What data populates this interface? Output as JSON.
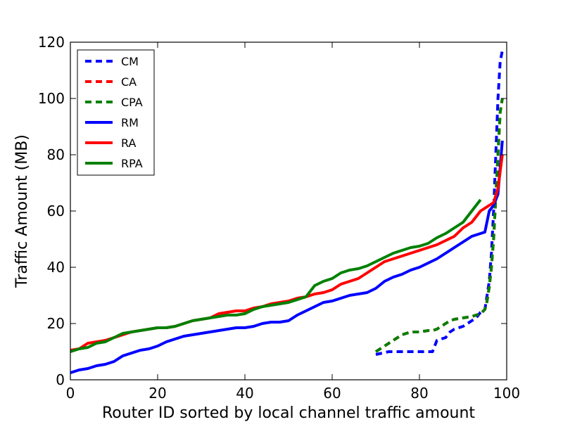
{
  "chart_data": {
    "type": "line",
    "title": "",
    "xlabel": "Router ID sorted by local channel traffic amount",
    "ylabel": "Traffic Amount (MB)",
    "xlim": [
      0,
      100
    ],
    "ylim": [
      0,
      120
    ],
    "xticks": [
      0,
      20,
      40,
      60,
      80,
      100
    ],
    "yticks": [
      0,
      20,
      40,
      60,
      80,
      100,
      120
    ],
    "xtick_labels": [
      "0",
      "20",
      "40",
      "60",
      "80",
      "100"
    ],
    "ytick_labels": [
      "0",
      "20",
      "40",
      "60",
      "80",
      "100",
      "120"
    ],
    "grid": false,
    "legend": "top-left",
    "series": [
      {
        "name": "CM",
        "color": "#0000ff",
        "style": "dashed",
        "x": [
          70,
          71.5,
          73,
          75,
          77,
          80,
          82,
          83,
          84,
          86,
          87,
          88,
          90,
          91,
          92,
          93,
          94,
          95,
          96,
          96.5,
          97,
          97.5,
          98,
          98.5,
          99
        ],
        "y": [
          9,
          9.5,
          10,
          10,
          10,
          10,
          10,
          10,
          14,
          15,
          17,
          18,
          19,
          20,
          21,
          22,
          24,
          25,
          35,
          45,
          60,
          80,
          100,
          113,
          117
        ]
      },
      {
        "name": "CA",
        "color": "#ff0000",
        "style": "dashed",
        "x": [
          70,
          72,
          74,
          76,
          78,
          80,
          82,
          83,
          84,
          86,
          87,
          88,
          90,
          92,
          93,
          94,
          95,
          95.5,
          96,
          96.5,
          97,
          97.5,
          98,
          98.5,
          99
        ],
        "y": [
          10,
          12,
          14,
          16,
          17,
          17,
          17.5,
          17.5,
          18,
          20,
          21,
          21.5,
          22,
          22.5,
          23,
          23.5,
          25,
          28,
          33,
          40,
          50,
          65,
          80,
          95,
          100
        ]
      },
      {
        "name": "CPA",
        "color": "#008000",
        "style": "dashed",
        "x": [
          70,
          72,
          74,
          76,
          78,
          80,
          82,
          83,
          84,
          86,
          87,
          88,
          90,
          92,
          93,
          94,
          95,
          95.5,
          96,
          96.5,
          97,
          97.5,
          98,
          98.5,
          99
        ],
        "y": [
          10,
          12,
          14,
          16,
          17,
          17,
          17.5,
          17.5,
          18,
          20,
          21,
          21.5,
          22,
          22.5,
          23,
          23.5,
          25,
          28,
          33,
          40,
          50,
          65,
          80,
          95,
          100
        ]
      },
      {
        "name": "RM",
        "color": "#0000ff",
        "style": "solid",
        "x": [
          0,
          2,
          4,
          6,
          8,
          10,
          12,
          14,
          16,
          18,
          20,
          22,
          24,
          26,
          28,
          30,
          32,
          34,
          36,
          38,
          40,
          42,
          44,
          46,
          48,
          50,
          52,
          54,
          56,
          58,
          60,
          62,
          64,
          66,
          68,
          70,
          72,
          74,
          76,
          78,
          80,
          82,
          84,
          86,
          88,
          90,
          92,
          94,
          95,
          96,
          97,
          98,
          99
        ],
        "y": [
          2.5,
          3.5,
          4,
          5,
          5.5,
          6.5,
          8.5,
          9.5,
          10.5,
          11,
          12,
          13.5,
          14.5,
          15.5,
          16,
          16.5,
          17,
          17.5,
          18,
          18.5,
          18.5,
          19,
          20,
          20.5,
          20.5,
          21,
          23,
          24.5,
          26,
          27.5,
          28,
          29,
          30,
          30.5,
          31,
          32.5,
          35,
          36.5,
          37.5,
          39,
          40,
          41.5,
          43,
          45,
          47,
          49,
          51,
          52,
          52.5,
          60,
          62,
          66,
          85
        ]
      },
      {
        "name": "RA",
        "color": "#ff0000",
        "style": "solid",
        "x": [
          0,
          2,
          4,
          6,
          8,
          10,
          12,
          14,
          16,
          18,
          20,
          22,
          24,
          26,
          28,
          30,
          32,
          34,
          36,
          38,
          40,
          42,
          44,
          46,
          48,
          50,
          52,
          54,
          56,
          58,
          60,
          62,
          64,
          66,
          68,
          70,
          72,
          74,
          76,
          78,
          80,
          82,
          84,
          86,
          88,
          90,
          92,
          94,
          95,
          96,
          97,
          98,
          99
        ],
        "y": [
          10.5,
          11,
          13,
          13.5,
          14,
          15,
          16,
          17,
          17.5,
          18,
          18.5,
          18.5,
          19,
          20,
          21,
          21.5,
          22,
          23.5,
          24,
          24.5,
          24.5,
          25.5,
          26,
          27,
          27.5,
          28,
          29,
          29.5,
          30.5,
          31,
          32,
          34,
          35,
          36,
          38,
          40,
          42,
          43,
          44,
          45,
          46,
          47,
          48,
          49.5,
          51,
          54,
          56,
          60,
          61,
          62,
          63,
          68,
          80
        ]
      },
      {
        "name": "RPA",
        "color": "#008000",
        "style": "solid",
        "x": [
          0,
          2,
          4,
          6,
          8,
          10,
          12,
          14,
          16,
          18,
          20,
          22,
          24,
          26,
          28,
          30,
          32,
          34,
          36,
          38,
          40,
          42,
          44,
          46,
          48,
          50,
          52,
          54,
          56,
          58,
          60,
          62,
          64,
          66,
          68,
          70,
          72,
          74,
          76,
          78,
          80,
          82,
          84,
          86,
          88,
          90,
          92,
          94
        ],
        "y": [
          10,
          11,
          11.5,
          13,
          13.5,
          15,
          16.5,
          17,
          17.5,
          18,
          18.5,
          18.5,
          19,
          20,
          21,
          21.5,
          22,
          22.5,
          23,
          23,
          23.5,
          25,
          26,
          26.5,
          27,
          27.5,
          28.5,
          29.5,
          33.5,
          35,
          36,
          38,
          39,
          39.5,
          40.5,
          42,
          43.5,
          45,
          46,
          47,
          47.5,
          48.5,
          50.5,
          52,
          54,
          56,
          60,
          64
        ]
      }
    ]
  }
}
